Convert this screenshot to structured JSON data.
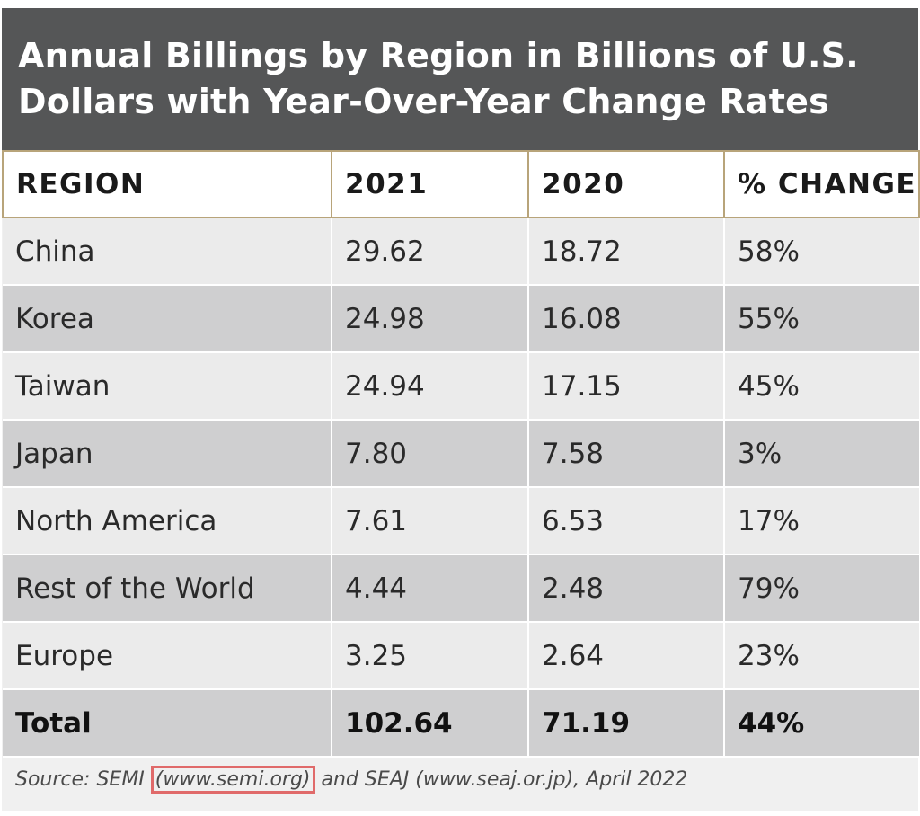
{
  "title": "Annual Billings by Region in Billions of U.S. Dollars with Year-Over-Year Change Rates",
  "title_lines": [
    "Annual Billings by Region in Billions of U.S.",
    "Dollars with Year-Over-Year Change Rates"
  ],
  "columns": [
    "REGION",
    "2021",
    "2020",
    "% CHANGE"
  ],
  "rows": [
    {
      "region": "China",
      "y2021": "29.62",
      "y2020": "18.72",
      "change": "58%"
    },
    {
      "region": "Korea",
      "y2021": "24.98",
      "y2020": "16.08",
      "change": "55%"
    },
    {
      "region": "Taiwan",
      "y2021": "24.94",
      "y2020": "17.15",
      "change": "45%"
    },
    {
      "region": "Japan",
      "y2021": "7.80",
      "y2020": "7.58",
      "change": "3%"
    },
    {
      "region": "North America",
      "y2021": "7.61",
      "y2020": "6.53",
      "change": "17%"
    },
    {
      "region": "Rest of the World",
      "y2021": "4.44",
      "y2020": "2.48",
      "change": "79%"
    },
    {
      "region": "Europe",
      "y2021": "3.25",
      "y2020": "2.64",
      "change": "23%"
    }
  ],
  "total": {
    "region": "Total",
    "y2021": "102.64",
    "y2020": "71.19",
    "change": "44%"
  },
  "source": {
    "prefix": "Source: SEMI ",
    "link": "(www.semi.org)",
    "suffix": " and SEAJ (www.seaj.or.jp), April 2022"
  },
  "colors": {
    "title_bg": "#555657",
    "header_border": "#b8a47a",
    "row_light": "#ebebeb",
    "row_dark": "#cfcfd0",
    "link_highlight": "#e06a6a"
  },
  "chart_data": {
    "type": "table",
    "title": "Annual Billings by Region in Billions of U.S. Dollars with Year-Over-Year Change Rates",
    "columns": [
      "REGION",
      "2021",
      "2020",
      "% CHANGE"
    ],
    "rows": [
      [
        "China",
        29.62,
        18.72,
        "58%"
      ],
      [
        "Korea",
        24.98,
        16.08,
        "55%"
      ],
      [
        "Taiwan",
        24.94,
        17.15,
        "45%"
      ],
      [
        "Japan",
        7.8,
        7.58,
        "3%"
      ],
      [
        "North America",
        7.61,
        6.53,
        "17%"
      ],
      [
        "Rest of the World",
        4.44,
        2.48,
        "79%"
      ],
      [
        "Europe",
        3.25,
        2.64,
        "23%"
      ],
      [
        "Total",
        102.64,
        71.19,
        "44%"
      ]
    ]
  }
}
